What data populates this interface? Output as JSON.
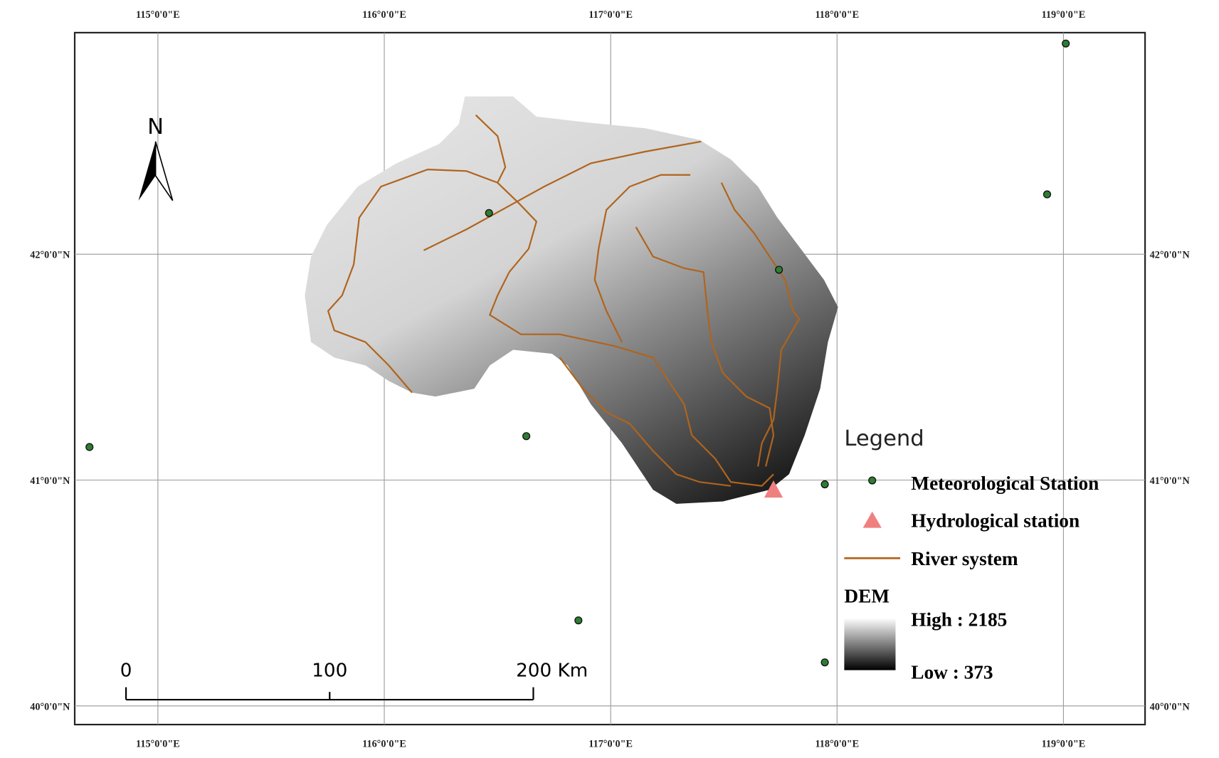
{
  "map": {
    "longitudes": [
      {
        "value": 115,
        "label": "115°0'0\"E"
      },
      {
        "value": 116,
        "label": "116°0'0\"E"
      },
      {
        "value": 117,
        "label": "117°0'0\"E"
      },
      {
        "value": 118,
        "label": "118°0'0\"E"
      },
      {
        "value": 119,
        "label": "119°0'0\"E"
      }
    ],
    "latitudes": [
      {
        "value": 42,
        "label": "42°0'0\"N"
      },
      {
        "value": 41,
        "label": "41°0'0\"N"
      },
      {
        "value": 40,
        "label": "40°0'0\"N"
      }
    ],
    "north": "N",
    "scale_bar": {
      "labels": [
        "0",
        "100",
        "200 Km"
      ]
    },
    "legend": {
      "title": "Legend",
      "items": [
        "Meteorological Station",
        "Hydrological station",
        "River system"
      ],
      "dem": {
        "title": "DEM",
        "high": "High : 2185",
        "low": "Low : 373"
      }
    }
  }
}
